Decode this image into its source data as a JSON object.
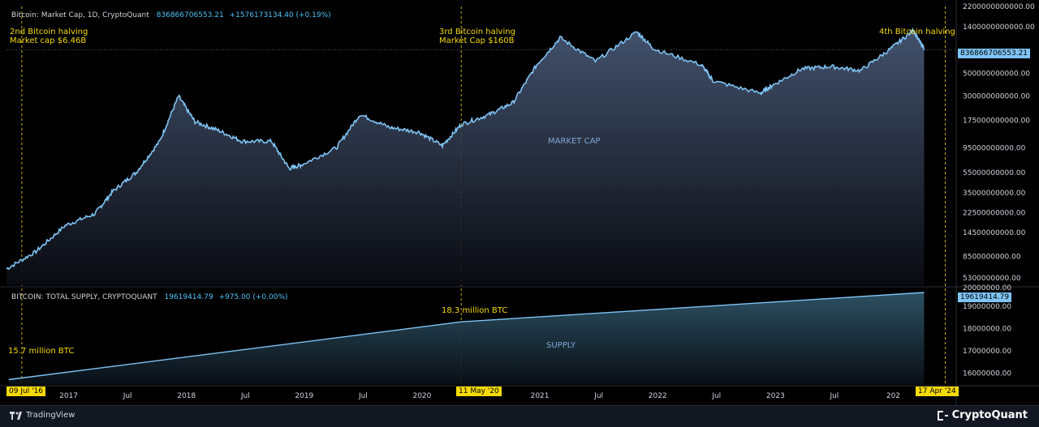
{
  "colors": {
    "line": "#7fc4f5",
    "annotation": "#f5d90a",
    "badge_bg": "#f5d90a",
    "badge_fg": "#000000",
    "last_badge_bg": "#7fc4f5"
  },
  "top_panel": {
    "symbol": "Bitcoin: Market Cap, 1D, CryptoQuant",
    "value": "836866706553.21",
    "change": "+1576173134.40 (+0.19%)",
    "last_value_badge": "836866706553.21",
    "watermark": "MARKET CAP",
    "annotations": [
      {
        "line1": "2nd Bitcoin halving",
        "line2": "Market cap $6.46B"
      },
      {
        "line1": "3rd Bitcoin halving",
        "line2": "Market Cap $160B"
      },
      {
        "line1": "4th Bitcoin halving",
        "line2": ""
      }
    ]
  },
  "bottom_panel": {
    "symbol": "BITCOIN: TOTAL SUPPLY, CRYPTOQUANT",
    "value": "19619414.79",
    "change": "+975.00 (+0.00%)",
    "last_value_badge": "19619414.79",
    "watermark": "SUPPLY",
    "annotations": [
      "15.7 million BTC",
      "18.3 million BTC"
    ]
  },
  "date_badges": [
    "09 Jul '16",
    "11 May '20",
    "17 Apr '24"
  ],
  "footer": {
    "left": "TradingView",
    "right": "CryptoQuant"
  },
  "chart_data": [
    {
      "type": "area",
      "title": "Bitcoin: Market Cap, 1D, CryptoQuant",
      "y_scale": "log",
      "ylim": [
        4500000000,
        2200000000000
      ],
      "y_ticks": [
        "2200000000000.00",
        "1400000000000.00",
        "836866706553.21",
        "500000000000.00",
        "300000000000.00",
        "175000000000.00",
        "95000000000.00",
        "55000000000.00",
        "35000000000.00",
        "22500000000.00",
        "14500000000.00",
        "8500000000.00",
        "5300000000.00"
      ],
      "x_ticks": [
        "2017",
        "Jul",
        "2018",
        "Jul",
        "2019",
        "Jul",
        "2020",
        "2021",
        "Jul",
        "2022",
        "Jul",
        "2023",
        "Jul",
        "202"
      ],
      "x": [
        2016.5,
        2016.75,
        2017.0,
        2017.25,
        2017.4,
        2017.6,
        2017.8,
        2017.96,
        2018.1,
        2018.3,
        2018.5,
        2018.75,
        2018.9,
        2019.0,
        2019.3,
        2019.5,
        2019.75,
        2020.0,
        2020.2,
        2020.36,
        2020.6,
        2020.8,
        2021.0,
        2021.2,
        2021.5,
        2021.85,
        2022.0,
        2022.4,
        2022.5,
        2022.9,
        2023.0,
        2023.25,
        2023.5,
        2023.75,
        2024.0,
        2024.2,
        2024.29
      ],
      "values": [
        6460000000,
        9500000000,
        17000000000,
        22000000000,
        36000000000,
        55000000000,
        110000000000,
        300000000000,
        170000000000,
        140000000000,
        110000000000,
        110000000000,
        60000000000,
        65000000000,
        95000000000,
        200000000000,
        150000000000,
        135000000000,
        100000000000,
        160000000000,
        200000000000,
        260000000000,
        600000000000,
        1100000000000,
        650000000000,
        1250000000000,
        850000000000,
        600000000000,
        420000000000,
        320000000000,
        380000000000,
        550000000000,
        580000000000,
        530000000000,
        850000000000,
        1300000000000,
        836866706553.21
      ]
    },
    {
      "type": "area",
      "title": "BITCOIN: TOTAL SUPPLY, CRYPTOQUANT",
      "ylim": [
        15500000,
        19800000
      ],
      "y_ticks": [
        "20000000.00",
        "19619414.79",
        "19000000.00",
        "18000000.00",
        "17000000.00",
        "16000000.00"
      ],
      "x": [
        2016.52,
        2020.36,
        2024.29
      ],
      "values": [
        15700000,
        18300000,
        19619414.79
      ]
    }
  ]
}
